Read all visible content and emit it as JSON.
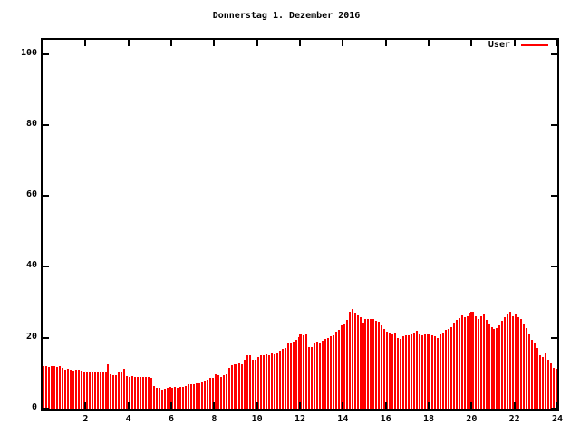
{
  "window": {
    "background": "#ffffff",
    "foreground": "#000000"
  },
  "chart_data": {
    "type": "bar",
    "style": "impulses",
    "title": "Donnerstag 1. Dezember 2016",
    "xlabel": "",
    "ylabel": "",
    "legend": {
      "label": "User",
      "position": "top-right"
    },
    "series_color": "#ff0000",
    "axis_color": "#000000",
    "grid": false,
    "xlim": [
      0,
      24
    ],
    "ylim": [
      0,
      105
    ],
    "x_ticks": [
      2,
      4,
      6,
      8,
      10,
      12,
      14,
      16,
      18,
      20,
      22,
      24
    ],
    "y_ticks": [
      0,
      20,
      40,
      60,
      80,
      100
    ],
    "points": [
      [
        0.06,
        12
      ],
      [
        0.19,
        12
      ],
      [
        0.31,
        11.8
      ],
      [
        0.44,
        12
      ],
      [
        0.56,
        12
      ],
      [
        0.69,
        11.8
      ],
      [
        0.81,
        12
      ],
      [
        0.94,
        11.5
      ],
      [
        1.06,
        11
      ],
      [
        1.19,
        11.2
      ],
      [
        1.31,
        11
      ],
      [
        1.44,
        10.8
      ],
      [
        1.56,
        11
      ],
      [
        1.69,
        11
      ],
      [
        1.81,
        10.8
      ],
      [
        1.94,
        10.6
      ],
      [
        2.06,
        10.5
      ],
      [
        2.19,
        10.6
      ],
      [
        2.31,
        10.3
      ],
      [
        2.44,
        10.5
      ],
      [
        2.56,
        10.4
      ],
      [
        2.69,
        10.3
      ],
      [
        2.81,
        10.5
      ],
      [
        2.94,
        10.3
      ],
      [
        3.06,
        12.6
      ],
      [
        3.19,
        9.6
      ],
      [
        3.31,
        9.4
      ],
      [
        3.44,
        9.5
      ],
      [
        3.56,
        10.2
      ],
      [
        3.69,
        10.3
      ],
      [
        3.81,
        11.2
      ],
      [
        3.94,
        9.2
      ],
      [
        4.06,
        9.0
      ],
      [
        4.19,
        9.1
      ],
      [
        4.31,
        9.0
      ],
      [
        4.44,
        8.9
      ],
      [
        4.56,
        9.0
      ],
      [
        4.69,
        9.0
      ],
      [
        4.81,
        8.9
      ],
      [
        4.94,
        9.0
      ],
      [
        5.06,
        8.8
      ],
      [
        5.19,
        6.5
      ],
      [
        5.31,
        6.0
      ],
      [
        5.44,
        5.8
      ],
      [
        5.56,
        5.3
      ],
      [
        5.69,
        5.6
      ],
      [
        5.81,
        6.0
      ],
      [
        5.94,
        6.2
      ],
      [
        6.06,
        6.0
      ],
      [
        6.19,
        6.1
      ],
      [
        6.31,
        6.0
      ],
      [
        6.44,
        6.2
      ],
      [
        6.56,
        6.1
      ],
      [
        6.69,
        6.3
      ],
      [
        6.81,
        6.8
      ],
      [
        6.94,
        6.9
      ],
      [
        7.06,
        7.0
      ],
      [
        7.19,
        7.2
      ],
      [
        7.31,
        7.1
      ],
      [
        7.44,
        7.4
      ],
      [
        7.56,
        7.8
      ],
      [
        7.69,
        8.2
      ],
      [
        7.81,
        8.6
      ],
      [
        7.94,
        8.8
      ],
      [
        8.06,
        9.8
      ],
      [
        8.19,
        9.4
      ],
      [
        8.31,
        9.0
      ],
      [
        8.44,
        9.5
      ],
      [
        8.56,
        9.6
      ],
      [
        8.69,
        11.6
      ],
      [
        8.81,
        12.2
      ],
      [
        8.94,
        12.6
      ],
      [
        9.06,
        12.5
      ],
      [
        9.19,
        12.8
      ],
      [
        9.31,
        12.6
      ],
      [
        9.44,
        13.9
      ],
      [
        9.56,
        15.0
      ],
      [
        9.69,
        15.1
      ],
      [
        9.81,
        13.9
      ],
      [
        9.94,
        13.8
      ],
      [
        10.06,
        14.6
      ],
      [
        10.19,
        15.2
      ],
      [
        10.31,
        15.0
      ],
      [
        10.44,
        15.4
      ],
      [
        10.56,
        15.2
      ],
      [
        10.69,
        15.5
      ],
      [
        10.81,
        15.3
      ],
      [
        10.94,
        15.8
      ],
      [
        11.06,
        16.4
      ],
      [
        11.19,
        16.9
      ],
      [
        11.31,
        17.2
      ],
      [
        11.44,
        18.4
      ],
      [
        11.56,
        18.7
      ],
      [
        11.69,
        18.9
      ],
      [
        11.81,
        19.3
      ],
      [
        11.94,
        20.3
      ],
      [
        11.99,
        20.6
      ],
      [
        12.02,
        20.9
      ],
      [
        12.06,
        21.0
      ],
      [
        12.19,
        20.8
      ],
      [
        12.31,
        20.9
      ],
      [
        12.44,
        17.5
      ],
      [
        12.56,
        17.3
      ],
      [
        12.69,
        18.5
      ],
      [
        12.81,
        19.0
      ],
      [
        12.94,
        18.7
      ],
      [
        13.06,
        19.2
      ],
      [
        13.19,
        19.6
      ],
      [
        13.31,
        19.9
      ],
      [
        13.44,
        20.4
      ],
      [
        13.56,
        20.6
      ],
      [
        13.69,
        21.6
      ],
      [
        13.81,
        22.3
      ],
      [
        13.94,
        23.4
      ],
      [
        14.06,
        23.8
      ],
      [
        14.19,
        25.0
      ],
      [
        14.31,
        27.3
      ],
      [
        14.44,
        28.1
      ],
      [
        14.56,
        27.0
      ],
      [
        14.69,
        26.2
      ],
      [
        14.81,
        25.8
      ],
      [
        14.94,
        24.2
      ],
      [
        15.06,
        25.3
      ],
      [
        15.19,
        25.3
      ],
      [
        15.31,
        25.3
      ],
      [
        15.44,
        25.2
      ],
      [
        15.56,
        24.8
      ],
      [
        15.69,
        24.5
      ],
      [
        15.81,
        23.6
      ],
      [
        15.94,
        22.5
      ],
      [
        16.06,
        21.6
      ],
      [
        16.19,
        21.3
      ],
      [
        16.31,
        21.0
      ],
      [
        16.44,
        21.1
      ],
      [
        16.56,
        20.0
      ],
      [
        16.69,
        19.6
      ],
      [
        16.81,
        20.4
      ],
      [
        16.94,
        20.6
      ],
      [
        17.06,
        20.8
      ],
      [
        17.19,
        21.0
      ],
      [
        17.31,
        21.2
      ],
      [
        17.44,
        22.0
      ],
      [
        17.56,
        21.0
      ],
      [
        17.69,
        20.7
      ],
      [
        17.81,
        20.9
      ],
      [
        17.94,
        21.0
      ],
      [
        18.06,
        20.9
      ],
      [
        18.19,
        20.6
      ],
      [
        18.31,
        20.4
      ],
      [
        18.44,
        19.8
      ],
      [
        18.56,
        21.0
      ],
      [
        18.69,
        21.5
      ],
      [
        18.81,
        22.3
      ],
      [
        18.94,
        22.6
      ],
      [
        19.06,
        23.0
      ],
      [
        19.19,
        24.3
      ],
      [
        19.31,
        25.0
      ],
      [
        19.44,
        25.5
      ],
      [
        19.56,
        26.3
      ],
      [
        19.69,
        25.8
      ],
      [
        19.81,
        26.0
      ],
      [
        19.94,
        27.2
      ],
      [
        19.99,
        27.3
      ],
      [
        20.02,
        27.0
      ],
      [
        20.06,
        27.4
      ],
      [
        20.19,
        26.0
      ],
      [
        20.31,
        25.4
      ],
      [
        20.44,
        26.0
      ],
      [
        20.56,
        26.6
      ],
      [
        20.69,
        25.0
      ],
      [
        20.81,
        23.8
      ],
      [
        20.94,
        23.0
      ],
      [
        21.06,
        22.6
      ],
      [
        21.19,
        22.7
      ],
      [
        21.31,
        23.5
      ],
      [
        21.44,
        24.8
      ],
      [
        21.56,
        25.8
      ],
      [
        21.69,
        26.8
      ],
      [
        21.81,
        27.3
      ],
      [
        21.94,
        26.0
      ],
      [
        22.06,
        26.8
      ],
      [
        22.19,
        25.8
      ],
      [
        22.31,
        25.3
      ],
      [
        22.44,
        24.0
      ],
      [
        22.56,
        22.8
      ],
      [
        22.69,
        21.0
      ],
      [
        22.81,
        19.3
      ],
      [
        22.94,
        18.4
      ],
      [
        23.06,
        17.2
      ],
      [
        23.19,
        15.0
      ],
      [
        23.31,
        14.6
      ],
      [
        23.44,
        15.5
      ],
      [
        23.56,
        13.8
      ],
      [
        23.69,
        12.9
      ],
      [
        23.81,
        11.6
      ],
      [
        23.94,
        11.3
      ]
    ]
  }
}
